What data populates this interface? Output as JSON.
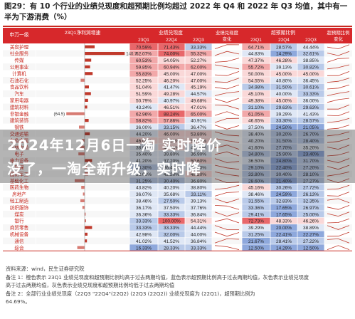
{
  "title": "图29：有 10 个行业的业绩兑现度和超预期比例均超过 2022 年 Q4 和 2022 年 Q3 均值，其中有一半为下游消费（%）",
  "chart_data": {
    "type": "table",
    "header": {
      "industry": "申万一级",
      "bar_col": "23Q1净利润增速",
      "fulfil_group": "业绩兑现度",
      "fulfil_change": "业绩兑现度变化",
      "beat_group": "超预期比例",
      "beat_change": "超预期比例变化",
      "quarters": [
        "23Q1",
        "22Q4",
        "22Q3",
        "23Q1",
        "22Q4",
        "22Q3"
      ]
    },
    "rows": [
      {
        "name": "美容护理",
        "growth": 35,
        "f": [
          70.59,
          71.43,
          33.33
        ],
        "b": [
          64.71,
          28.57,
          44.44
        ]
      },
      {
        "name": "社会服务",
        "growth": 140.7,
        "f": [
          62.07,
          74.0,
          55.32
        ],
        "b": [
          44.83,
          14.29,
          32.61
        ]
      },
      {
        "name": "传媒",
        "growth": 23,
        "f": [
          60.53,
          54.05,
          52.27
        ],
        "b": [
          47.37,
          46.28,
          38.85
        ]
      },
      {
        "name": "公用事业",
        "growth": 19,
        "f": [
          59.85,
          60.94,
          62.0
        ],
        "b": [
          55.72,
          39.13,
          30.82
        ]
      },
      {
        "name": "计算机",
        "growth": 28,
        "f": [
          55.83,
          45.0,
          47.0
        ],
        "b": [
          50.0,
          45.0,
          45.0
        ]
      },
      {
        "name": "石油石化",
        "growth": -14,
        "f": [
          52.25,
          46.2,
          47.0
        ],
        "b": [
          54.55,
          40.8,
          36.45
        ]
      },
      {
        "name": "食品饮料",
        "growth": 15,
        "f": [
          51.04,
          41.47,
          45.19
        ],
        "b": [
          34.98,
          31.5,
          30.61
        ]
      },
      {
        "name": "汽车",
        "growth": 22,
        "f": [
          51.59,
          49.28,
          44.57
        ],
        "b": [
          45.1,
          40.0,
          33.33
        ]
      },
      {
        "name": "家用电器",
        "growth": 12,
        "f": [
          50.79,
          40.97,
          49.68
        ],
        "b": [
          49.38,
          45.0,
          36.0
        ]
      },
      {
        "name": "建筑材料",
        "growth": 9,
        "f": [
          43.24,
          46.51,
          47.01
        ],
        "b": [
          31.1,
          29.63,
          29.63
        ]
      },
      {
        "name": "非银金融",
        "growth": -64.5,
        "f": [
          62.96,
          88.24,
          65.0
        ],
        "b": [
          61.05,
          39.29,
          41.43
        ]
      },
      {
        "name": "建筑装饰",
        "growth": 14,
        "f": [
          58.82,
          57.86,
          40.91
        ],
        "b": [
          46.65,
          33.3,
          28.57
        ]
      },
      {
        "name": "钢铁",
        "growth": -20,
        "f": [
          36.0,
          33.15,
          36.47
        ],
        "b": [
          37.5,
          24.5,
          21.05
        ]
      },
      {
        "name": "交通运输",
        "growth": 18,
        "f": [
          44.2,
          46.0,
          53.8
        ],
        "b": [
          38.4,
          30.2,
          26.7
        ]
      },
      {
        "name": "有色金属",
        "growth": -10,
        "f": [
          46.0,
          48.3,
          51.1
        ],
        "b": [
          40.2,
          31.5,
          28.4
        ]
      },
      {
        "name": "农林牧渔",
        "growth": -18,
        "f": [
          38.9,
          49.3,
          42.1
        ],
        "b": [
          41.6,
          27.7,
          35.2
        ]
      },
      {
        "name": "电子",
        "growth": -22,
        "f": [
          35.4,
          39.8,
          36.9
        ],
        "b": [
          34.8,
          25.9,
          23.4
        ]
      },
      {
        "name": "电力设备",
        "growth": 26,
        "f": [
          41.2,
          37.2,
          50.6
        ],
        "b": [
          36.5,
          24.8,
          31.7
        ]
      },
      {
        "name": "环保",
        "growth": 8,
        "f": [
          33.3,
          36.4,
          42.5
        ],
        "b": [
          29.1,
          22.4,
          27.2
        ]
      },
      {
        "name": "国防军工",
        "growth": 12,
        "f": [
          38.6,
          42.2,
          48.2
        ],
        "b": [
          33.8,
          30.4,
          28.1
        ]
      },
      {
        "name": "基础化工",
        "growth": -35,
        "f": [
          31.25,
          30.4,
          36.8
        ],
        "b": [
          28.6,
          21.4,
          27.27
        ]
      },
      {
        "name": "医药生物",
        "growth": -12,
        "f": [
          43.82,
          40.2,
          38.8
        ],
        "b": [
          45.16,
          30.26,
          27.72
        ]
      },
      {
        "name": "房地产",
        "growth": -6,
        "f": [
          36.07,
          35.68,
          33.11
        ],
        "b": [
          38.46,
          24.59,
          26.13
        ]
      },
      {
        "name": "轻工制造",
        "growth": -15,
        "f": [
          38.46,
          27.5,
          39.13
        ],
        "b": [
          31.55,
          32.83,
          32.35
        ]
      },
      {
        "name": "纺织服饰",
        "growth": -8,
        "f": [
          36.17,
          37.5,
          37.76
        ],
        "b": [
          33.36,
          17.65,
          26.97
        ]
      },
      {
        "name": "煤炭",
        "growth": 3,
        "f": [
          36.36,
          33.33,
          36.84
        ],
        "b": [
          29.41,
          17.65,
          25.0
        ]
      },
      {
        "name": "银行",
        "growth": 4,
        "f": [
          33.33,
          100.0,
          54.31
        ],
        "b": [
          72.73,
          48.33,
          46.26
        ]
      },
      {
        "name": "商贸零售",
        "growth": 26,
        "f": [
          33.33,
          33.33,
          44.44
        ],
        "b": [
          39.29,
          20.0,
          38.89
        ]
      },
      {
        "name": "机械设备",
        "growth": 10,
        "f": [
          42.98,
          32.0,
          44.0
        ],
        "b": [
          31.25,
          22.41,
          22.27
        ]
      },
      {
        "name": "通信",
        "growth": 8,
        "f": [
          41.02,
          41.52,
          36.84
        ],
        "b": [
          21.67,
          28.41,
          27.22
        ]
      },
      {
        "name": "综合",
        "growth": -26,
        "f": [
          16.33,
          28.33,
          33.33
        ],
        "b": [
          12.5,
          14.29,
          12.5
        ]
      }
    ],
    "bar_labels": [
      {
        "row": 1,
        "text": "140.7"
      },
      {
        "row": 10,
        "text": "(64.5)"
      }
    ]
  },
  "colors": {
    "accent": "#c9281f",
    "header": "#d7282b",
    "positive_bar": "#c0392b"
  },
  "banner": {
    "line1": "2024年12月6日一淘 实时降价",
    "line2": "没了，一淘全新升级，实时降"
  },
  "notes": {
    "source": "资料来源：wind，民生证券研究院",
    "n1": "备注 1：橙色表示 23Q1 业绩兑现度和超预期比例均高于过去两期均值，蓝色表示超预期比例高于过去两期均值，灰色表示业绩兑现度",
    "n1b": "高于过去两期均值，灰色表示业绩兑现度和超预期比例均低于过去两期均值",
    "n2": "备注 2：全部行业业绩兑现度（22Q3 \"22Q4\"(22Q2)  (22Q3 (22Q2)) 业绩兑现度为 (22Q1)，超预期比例为",
    "n3": "64.69%。"
  }
}
